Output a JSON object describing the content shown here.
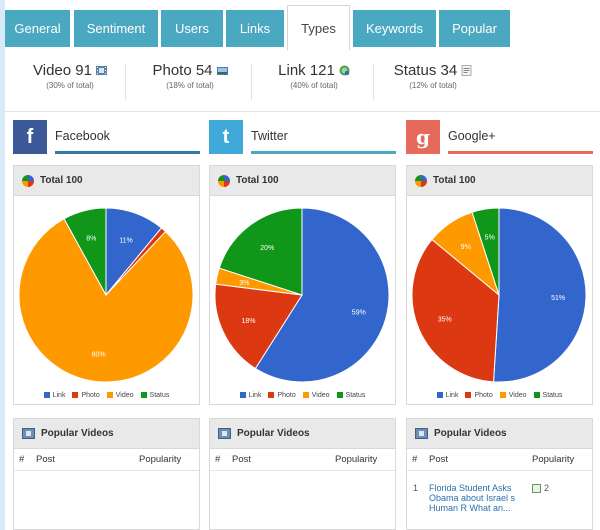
{
  "tabs": [
    {
      "label": "General"
    },
    {
      "label": "Sentiment"
    },
    {
      "label": "Users"
    },
    {
      "label": "Links"
    },
    {
      "label": "Types",
      "active": true
    },
    {
      "label": "Keywords"
    },
    {
      "label": "Popular"
    }
  ],
  "stats": [
    {
      "label": "Video 91",
      "sub": "(30% of total)",
      "icon": "film-icon"
    },
    {
      "label": "Photo 54",
      "sub": "(18% of total)",
      "icon": "photo-icon"
    },
    {
      "label": "Link 121",
      "sub": "(40% of total)",
      "icon": "link-icon"
    },
    {
      "label": "Status 34",
      "sub": "(12% of total)",
      "icon": "status-icon"
    }
  ],
  "networks": [
    {
      "name": "Facebook",
      "logo_text": "f",
      "logo_color": "#3b5998",
      "underline_color": "#2f7aa6",
      "chart_title": "Total 100",
      "popular_title": "Popular Videos",
      "table_headers": {
        "num": "#",
        "post": "Post",
        "popularity": "Popularity"
      },
      "rows": []
    },
    {
      "name": "Twitter",
      "logo_text": "t",
      "logo_color": "#3fa9d9",
      "underline_color": "#4aa9c0",
      "chart_title": "Total 100",
      "popular_title": "Popular Videos",
      "table_headers": {
        "num": "#",
        "post": "Post",
        "popularity": "Popularity"
      },
      "rows": []
    },
    {
      "name": "Google+",
      "logo_text": "g",
      "logo_color": "#e66a5a",
      "underline_color": "#e66a5a",
      "chart_title": "Total 100",
      "popular_title": "Popular Videos",
      "table_headers": {
        "num": "#",
        "post": "Post",
        "popularity": "Popularity"
      },
      "rows": [
        {
          "num": "1",
          "post": "Florida Student Asks Obama about Israel s Human R What an...",
          "popularity": "2"
        }
      ]
    }
  ],
  "legend": [
    "Link",
    "Photo",
    "Video",
    "Status"
  ],
  "colors": {
    "link": "#3366cc",
    "photo": "#dc3912",
    "video": "#ff9900",
    "status": "#109618",
    "tab": "#4aa9c0"
  },
  "chart_data": [
    {
      "type": "pie",
      "title": "Total 100",
      "categories": [
        "Link",
        "Photo",
        "Video",
        "Status"
      ],
      "values": [
        11,
        1,
        80,
        8
      ],
      "labels": [
        "11%",
        "",
        "80%",
        "8%"
      ],
      "legend": "bottom"
    },
    {
      "type": "pie",
      "title": "Total 100",
      "categories": [
        "Link",
        "Photo",
        "Video",
        "Status"
      ],
      "values": [
        59,
        18,
        3,
        20
      ],
      "labels": [
        "59%",
        "18%",
        "3%",
        "20%"
      ],
      "legend": "bottom"
    },
    {
      "type": "pie",
      "title": "Total 100",
      "categories": [
        "Link",
        "Photo",
        "Video",
        "Status"
      ],
      "values": [
        51,
        35,
        9,
        5
      ],
      "labels": [
        "51%",
        "35%",
        "9%",
        "5%"
      ],
      "legend": "bottom"
    }
  ]
}
